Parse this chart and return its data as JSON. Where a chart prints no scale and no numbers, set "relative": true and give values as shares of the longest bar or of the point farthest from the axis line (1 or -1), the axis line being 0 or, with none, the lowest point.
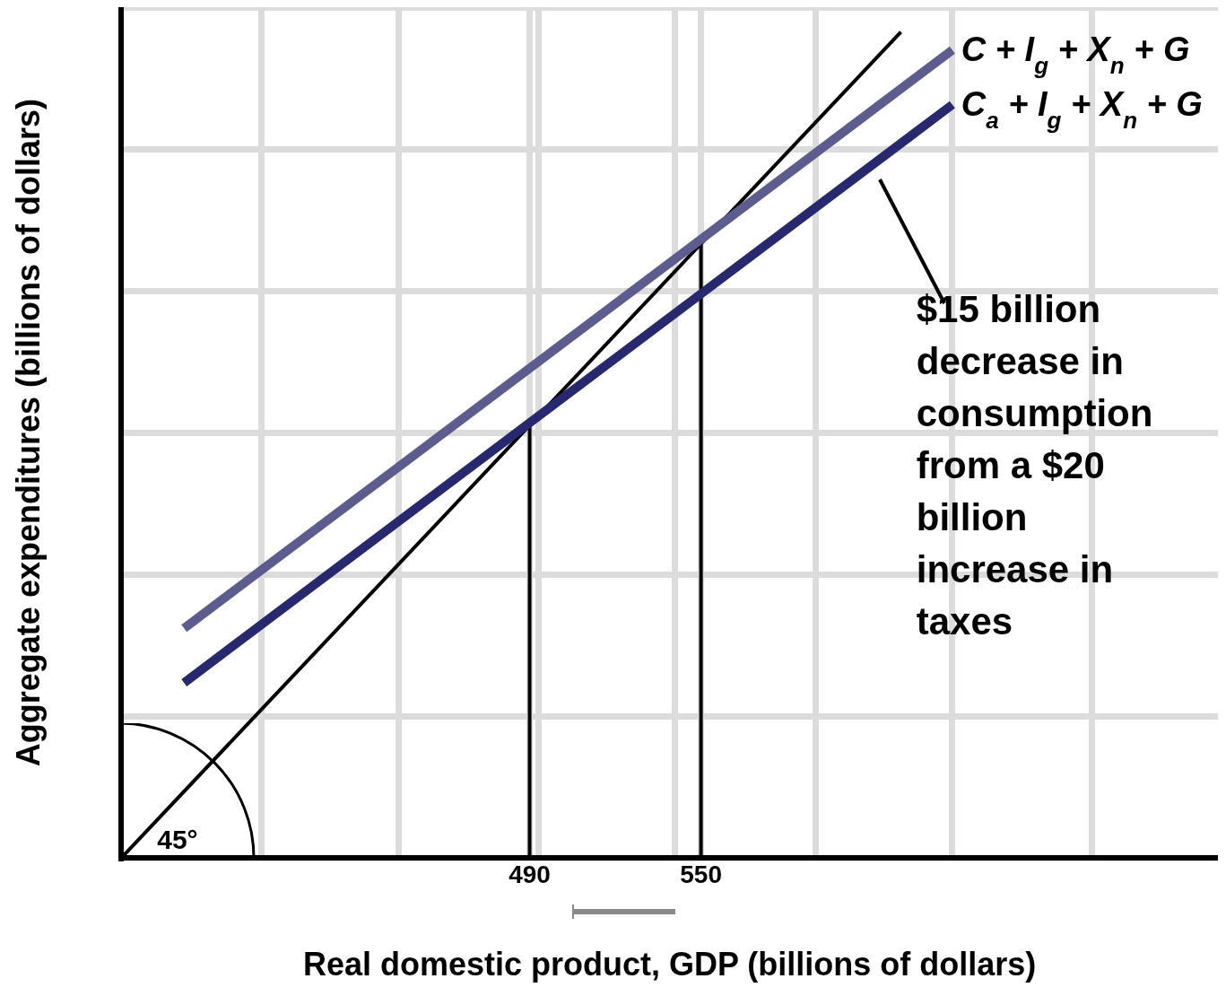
{
  "chart_data": {
    "type": "line",
    "xlabel": "Real domestic product, GDP (billions of dollars)",
    "ylabel": "Aggregate expenditures (billions of dollars)",
    "relative": true,
    "xlim": [
      347,
      731
    ],
    "xticks": [
      {
        "value": 396,
        "label": null
      },
      {
        "value": 444,
        "label": null
      },
      490,
      {
        "value": 493,
        "label": null
      },
      {
        "value": 541,
        "label": null
      },
      550,
      {
        "value": 590,
        "label": null
      },
      {
        "value": 638,
        "label": null
      },
      {
        "value": 687,
        "label": null
      }
    ],
    "tick_labels": "x",
    "grid": true,
    "legend": false,
    "marker": "none",
    "line_style": "solid",
    "series": [
      {
        "name": "C + I$_{g}$ + X$_{n}$ + G",
        "color": "#5c5c8e",
        "x": [
          369,
          638
        ],
        "values": [
          0.278,
          0.978
        ]
      },
      {
        "name": "C$_{a}$ + I$_{g}$ + X$_{n}$ + G",
        "color": "#28286e",
        "x": [
          369,
          638
        ],
        "values": [
          0.212,
          0.912
        ]
      },
      {
        "color": "#000000",
        "x": [
          347,
          620
        ],
        "values": [
          0,
          1
        ]
      },
      {
        "color": "#000000",
        "x": [
          490,
          490
        ],
        "values": [
          0,
          0.529
        ]
      },
      {
        "color": "#000000",
        "x": [
          550,
          550
        ],
        "values": [
          0,
          0.743
        ]
      }
    ],
    "annotations": [
      "45°",
      "$15 billion decrease in consumption from a $20 billion increase in taxes"
    ]
  }
}
